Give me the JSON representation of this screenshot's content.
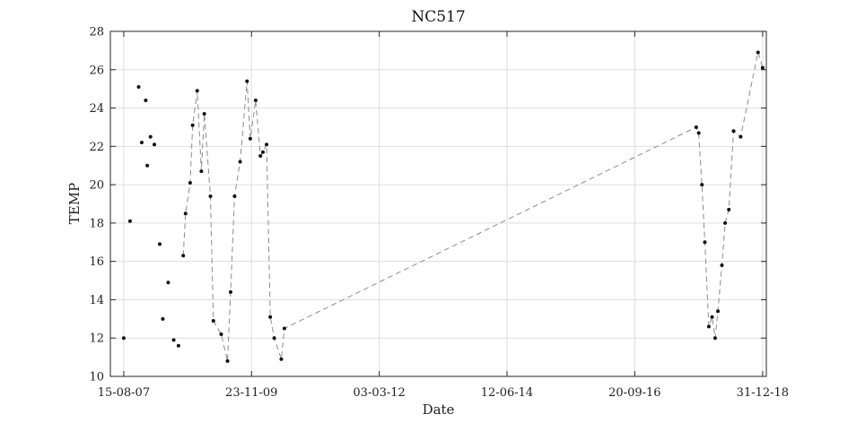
{
  "chart_data": {
    "type": "line",
    "title": "NC517",
    "xlabel": "Date",
    "ylabel": "TEMP",
    "ylim": [
      10,
      28
    ],
    "yticks": [
      10,
      12,
      14,
      16,
      18,
      20,
      22,
      24,
      26,
      28
    ],
    "xlim": [
      "2007-05-20",
      "2019-01-24"
    ],
    "xticks": [
      {
        "date": "2007-08-15",
        "label": "15-08-07"
      },
      {
        "date": "2009-11-23",
        "label": "23-11-09"
      },
      {
        "date": "2012-03-03",
        "label": "03-03-12"
      },
      {
        "date": "2014-06-12",
        "label": "12-06-14"
      },
      {
        "date": "2016-09-20",
        "label": "20-09-16"
      },
      {
        "date": "2018-12-31",
        "label": "31-12-18"
      }
    ],
    "grid": true,
    "series": [
      {
        "style": "markers",
        "points": [
          {
            "x": "2007-08-15",
            "y": 12.0
          },
          {
            "x": "2007-09-25",
            "y": 18.1
          },
          {
            "x": "2007-11-20",
            "y": 25.1
          },
          {
            "x": "2007-12-10",
            "y": 22.2
          },
          {
            "x": "2008-01-05",
            "y": 24.4
          },
          {
            "x": "2008-01-15",
            "y": 21.0
          },
          {
            "x": "2008-02-05",
            "y": 22.5
          },
          {
            "x": "2008-03-01",
            "y": 22.1
          },
          {
            "x": "2008-04-05",
            "y": 16.9
          },
          {
            "x": "2008-04-25",
            "y": 13.0
          },
          {
            "x": "2008-05-30",
            "y": 14.9
          },
          {
            "x": "2008-07-05",
            "y": 11.9
          },
          {
            "x": "2008-08-05",
            "y": 11.6
          }
        ]
      },
      {
        "style": "dashed",
        "points": [
          {
            "x": "2008-09-05",
            "y": 16.3
          },
          {
            "x": "2008-09-20",
            "y": 18.5
          },
          {
            "x": "2008-10-20",
            "y": 20.1
          },
          {
            "x": "2008-11-05",
            "y": 23.1
          },
          {
            "x": "2008-12-05",
            "y": 24.9
          },
          {
            "x": "2009-01-01",
            "y": 20.7
          },
          {
            "x": "2009-01-20",
            "y": 23.7
          },
          {
            "x": "2009-03-01",
            "y": 19.4
          },
          {
            "x": "2009-03-20",
            "y": 12.9
          },
          {
            "x": "2009-05-10",
            "y": 12.2
          },
          {
            "x": "2009-06-20",
            "y": 10.8
          },
          {
            "x": "2009-07-10",
            "y": 14.4
          },
          {
            "x": "2009-08-05",
            "y": 19.4
          },
          {
            "x": "2009-09-10",
            "y": 21.2
          },
          {
            "x": "2009-10-25",
            "y": 25.4
          },
          {
            "x": "2009-11-15",
            "y": 22.4
          },
          {
            "x": "2009-12-20",
            "y": 24.4
          },
          {
            "x": "2010-01-20",
            "y": 21.5
          },
          {
            "x": "2010-02-05",
            "y": 21.7
          },
          {
            "x": "2010-03-01",
            "y": 22.1
          },
          {
            "x": "2010-03-25",
            "y": 13.1
          },
          {
            "x": "2010-04-20",
            "y": 12.0
          },
          {
            "x": "2010-06-05",
            "y": 10.9
          },
          {
            "x": "2010-06-25",
            "y": 12.5
          },
          {
            "x": "2017-10-25",
            "y": 23.0
          },
          {
            "x": "2017-11-10",
            "y": 22.7
          },
          {
            "x": "2017-12-01",
            "y": 20.0
          },
          {
            "x": "2017-12-20",
            "y": 17.0
          },
          {
            "x": "2018-01-15",
            "y": 12.6
          },
          {
            "x": "2018-02-05",
            "y": 13.1
          },
          {
            "x": "2018-02-25",
            "y": 12.0
          },
          {
            "x": "2018-03-15",
            "y": 13.4
          },
          {
            "x": "2018-04-10",
            "y": 15.8
          },
          {
            "x": "2018-05-01",
            "y": 18.0
          },
          {
            "x": "2018-05-25",
            "y": 18.7
          },
          {
            "x": "2018-06-25",
            "y": 22.8
          },
          {
            "x": "2018-08-10",
            "y": 22.5
          },
          {
            "x": "2018-12-01",
            "y": 26.9
          },
          {
            "x": "2018-12-31",
            "y": 26.1
          }
        ]
      }
    ]
  }
}
